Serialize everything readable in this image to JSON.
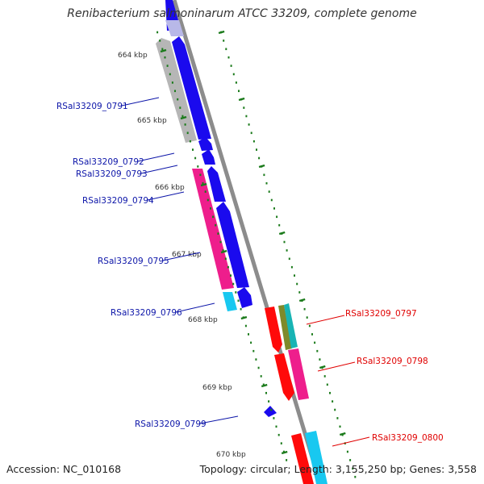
{
  "title": "Renibacterium salmoninarum ATCC 33209, complete genome",
  "footer": {
    "accession": "Accession: NC_010168",
    "topology": "Topology: circular; Length: 3,155,250 bp; Genes: 3,558"
  },
  "kbp_labels": [
    "664 kbp",
    "665 kbp",
    "666 kbp",
    "667 kbp",
    "668 kbp",
    "669 kbp",
    "670 kbp"
  ],
  "colors": {
    "forward_label": "#0b14a8",
    "reverse_label": "#e00000",
    "tick": "#1a7a1a",
    "backbone": "#8c8c8c",
    "blue": "#1a0aee",
    "grey": "#b6b6b6",
    "magenta": "#ee1e8c",
    "cyan": "#18c8f0",
    "red": "#ff0a0a",
    "olive": "#7f8a2a",
    "teal": "#18b4b4"
  },
  "gene_labels": {
    "forward": [
      "RSal33209_0791",
      "RSal33209_0792",
      "RSal33209_0793",
      "RSal33209_0794",
      "RSal33209_0795",
      "RSal33209_0796",
      "RSal33209_0799"
    ],
    "reverse": [
      "RSal33209_0797",
      "RSal33209_0798",
      "RSal33209_0800"
    ]
  }
}
